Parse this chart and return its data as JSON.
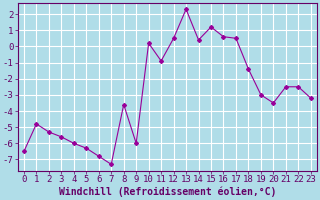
{
  "x": [
    0,
    1,
    2,
    3,
    4,
    5,
    6,
    7,
    8,
    9,
    10,
    11,
    12,
    13,
    14,
    15,
    16,
    17,
    18,
    19,
    20,
    21,
    22,
    23
  ],
  "y": [
    -6.5,
    -4.8,
    -5.3,
    -5.6,
    -6.0,
    -6.3,
    -6.8,
    -7.3,
    -3.6,
    -6.0,
    0.2,
    -0.9,
    0.5,
    2.3,
    0.4,
    1.2,
    0.6,
    0.5,
    -1.4,
    -3.0,
    -3.5,
    -2.5,
    -2.5,
    -3.2
  ],
  "line_color": "#990099",
  "marker": "D",
  "marker_size": 2,
  "bg_color": "#b0dde8",
  "grid_color": "#ffffff",
  "xlabel": "Windchill (Refroidissement éolien,°C)",
  "ylabel": "",
  "xlim": [
    -0.5,
    23.5
  ],
  "ylim": [
    -7.7,
    2.7
  ],
  "yticks": [
    2,
    1,
    0,
    -1,
    -2,
    -3,
    -4,
    -5,
    -6,
    -7
  ],
  "xticks": [
    0,
    1,
    2,
    3,
    4,
    5,
    6,
    7,
    8,
    9,
    10,
    11,
    12,
    13,
    14,
    15,
    16,
    17,
    18,
    19,
    20,
    21,
    22,
    23
  ],
  "tick_color": "#660066",
  "label_color": "#660066",
  "label_fontsize": 6.5,
  "tick_fontsize": 6.5,
  "xlabel_fontsize": 7.0
}
